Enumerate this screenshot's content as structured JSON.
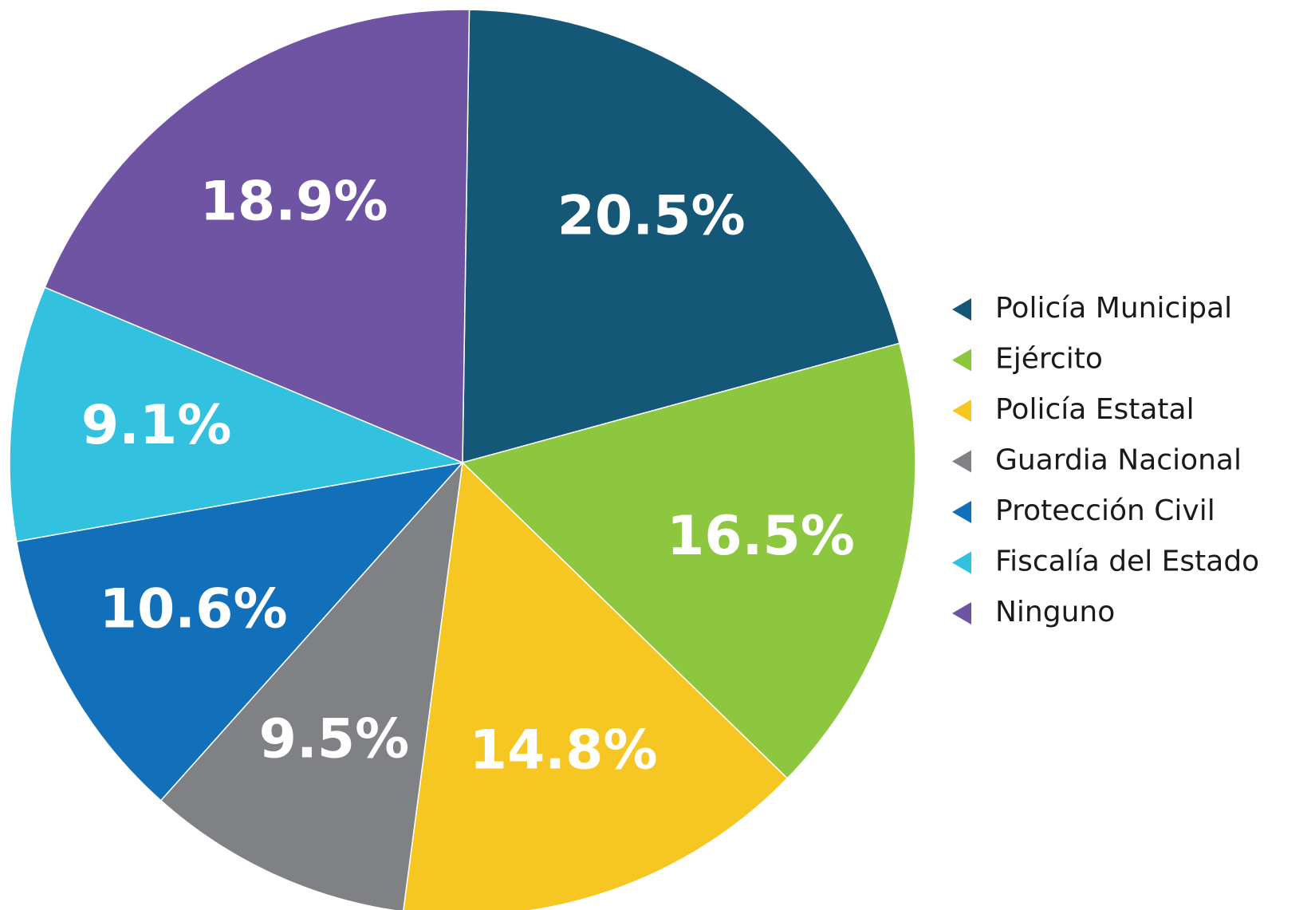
{
  "chart_data": {
    "type": "pie",
    "categories": [
      "Policía Municipal",
      "Ejército",
      "Policía Estatal",
      "Guardia Nacional",
      "Protección Civil",
      "Fiscalía del Estado",
      "Ninguno"
    ],
    "values": [
      20.5,
      16.5,
      14.8,
      9.5,
      10.6,
      9.1,
      18.9
    ],
    "value_labels": [
      "20.5%",
      "16.5%",
      "14.8%",
      "9.5%",
      "10.6%",
      "9.1%",
      "18.9%"
    ],
    "colors": [
      "#155777",
      "#8dc63f",
      "#f6c623",
      "#808184",
      "#1270bb",
      "#33c1e0",
      "#6e54a3"
    ],
    "legend": "right"
  }
}
